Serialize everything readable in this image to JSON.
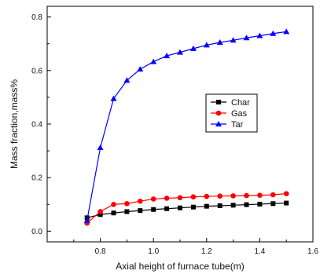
{
  "chart_data": {
    "type": "line",
    "title": "",
    "xlabel": "Axial height of furnace tube(m)",
    "ylabel": "Mass fraction,mass%",
    "xlim": [
      0.6,
      1.6
    ],
    "ylim": [
      -0.04,
      0.84
    ],
    "xticks": [
      0.8,
      1.0,
      1.2,
      1.4,
      1.6
    ],
    "yticks": [
      0.0,
      0.2,
      0.4,
      0.6,
      0.8
    ],
    "xtick_labels": [
      "0.8",
      "1.0",
      "1.2",
      "1.4",
      "1.6"
    ],
    "ytick_labels": [
      "0.0",
      "0.2",
      "0.4",
      "0.6",
      "0.8"
    ],
    "grid": false,
    "legend_position": "right-middle",
    "x": [
      0.75,
      0.8,
      0.85,
      0.9,
      0.95,
      1.0,
      1.05,
      1.1,
      1.15,
      1.2,
      1.25,
      1.3,
      1.35,
      1.4,
      1.45,
      1.5
    ],
    "series": [
      {
        "name": "Char",
        "color": "#000000",
        "marker": "square",
        "values": [
          0.05,
          0.062,
          0.068,
          0.073,
          0.077,
          0.081,
          0.084,
          0.087,
          0.09,
          0.093,
          0.095,
          0.097,
          0.099,
          0.101,
          0.103,
          0.105
        ]
      },
      {
        "name": "Gas",
        "color": "#ff0000",
        "marker": "circle",
        "values": [
          0.03,
          0.073,
          0.1,
          0.103,
          0.112,
          0.12,
          0.123,
          0.125,
          0.128,
          0.13,
          0.131,
          0.132,
          0.133,
          0.134,
          0.136,
          0.14
        ]
      },
      {
        "name": "Tar",
        "color": "#0000ff",
        "marker": "triangle",
        "values": [
          0.04,
          0.312,
          0.495,
          0.563,
          0.605,
          0.633,
          0.655,
          0.668,
          0.682,
          0.695,
          0.705,
          0.713,
          0.722,
          0.73,
          0.738,
          0.745
        ]
      }
    ]
  }
}
